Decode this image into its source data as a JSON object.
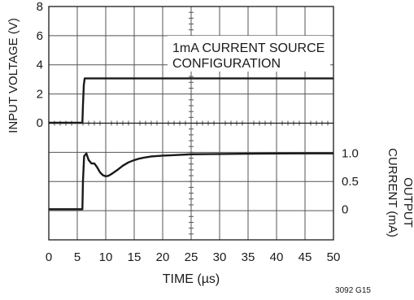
{
  "chart_data": {
    "type": "line",
    "figure_id": "3092 G15",
    "xlabel": "TIME (µs)",
    "xlim": [
      0,
      50
    ],
    "x_ticks": [
      "0",
      "5",
      "10",
      "15",
      "20",
      "25",
      "30",
      "35",
      "40",
      "45",
      "50"
    ],
    "annotation": {
      "line1": "1mA CURRENT SOURCE",
      "line2": "CONFIGURATION"
    },
    "colors": {
      "trace": "#1a1a1a",
      "grid": "#555555",
      "axes": "#1a1a1a",
      "background": "#ffffff"
    },
    "panels": [
      {
        "ylabel": "INPUT VOLTAGE (V)",
        "ylim": [
          0,
          8
        ],
        "y_ticks": [
          "0",
          "2",
          "4",
          "6",
          "8"
        ],
        "series": [
          {
            "x": [
              0,
              5.9,
              6.0,
              6.15,
              6.3,
              50
            ],
            "y": [
              0,
              0,
              1.2,
              2.6,
              3.05,
              3.05
            ]
          }
        ]
      },
      {
        "ylabel_line1": "OUTPUT",
        "ylabel_line2": "CURRENT (mA)",
        "ylim": [
          -0.55,
          1.55
        ],
        "y_ticks": [
          "0",
          "0.5",
          "1.0"
        ],
        "y_tick_values": [
          0,
          0.5,
          1.0
        ],
        "series": [
          {
            "x": [
              0,
              5.9,
              6.0,
              6.2,
              6.6,
              7.0,
              7.5,
              8.0,
              8.5,
              9.0,
              9.5,
              10.0,
              10.5,
              11.0,
              12.0,
              13.0,
              14.0,
              15.0,
              16.0,
              17.0,
              18.0,
              20.0,
              22.0,
              25.0,
              30.0,
              35.0,
              40.0,
              45.0,
              50.0
            ],
            "y": [
              0,
              0,
              0.5,
              0.95,
              1.0,
              0.88,
              0.82,
              0.82,
              0.75,
              0.66,
              0.61,
              0.59,
              0.6,
              0.63,
              0.7,
              0.78,
              0.84,
              0.88,
              0.91,
              0.93,
              0.945,
              0.96,
              0.97,
              0.985,
              0.99,
              0.995,
              0.998,
              1.0,
              1.0
            ]
          }
        ]
      }
    ]
  }
}
